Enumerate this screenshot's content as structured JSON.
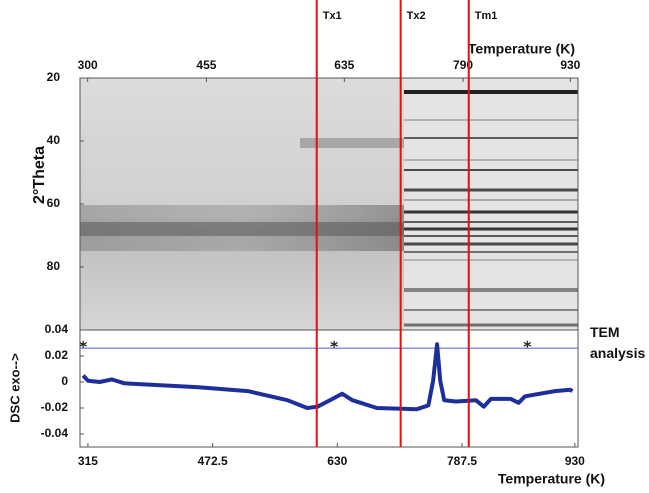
{
  "chart_data": [
    {
      "type": "image",
      "xlabel": "Temperature (K)",
      "ylabel": "2°Theta",
      "xlim": [
        290,
        940
      ],
      "xticks": [
        300,
        455,
        635,
        790,
        930
      ],
      "ylim": [
        20,
        100
      ],
      "yticks": [
        20,
        40,
        60,
        80
      ]
    },
    {
      "type": "line",
      "xlabel": "Temperature (K)",
      "ylabel": "DSC exo-->",
      "annotation": "TEM analysis",
      "xlim": [
        305,
        934
      ],
      "xticks": [
        315,
        472.5,
        630,
        787.5,
        930
      ],
      "ylim": [
        -0.05,
        0.04
      ],
      "yticks": [
        0.04,
        0.02,
        0,
        -0.02,
        -0.04
      ],
      "x": [
        309,
        315,
        330,
        345,
        361,
        392,
        455,
        517,
        567,
        592,
        605,
        624,
        636,
        649,
        680,
        730,
        745,
        751,
        756,
        760,
        765,
        780,
        805,
        815,
        824,
        849,
        859,
        867,
        905,
        924,
        927
      ],
      "series": [
        {
          "color": "#1f2f9a",
          "values": [
            0.005,
            0.001,
            0,
            0.002,
            -0.001,
            -0.002,
            -0.004,
            -0.007,
            -0.014,
            -0.02,
            -0.019,
            -0.013,
            -0.009,
            -0.014,
            -0.02,
            -0.021,
            -0.018,
            0.001,
            0.029,
            0.001,
            -0.014,
            -0.015,
            -0.014,
            -0.019,
            -0.013,
            -0.013,
            -0.016,
            -0.011,
            -0.007,
            -0.006,
            -0.007
          ]
        }
      ],
      "tem_level": 0.026,
      "tem_color": "#6b6bd6",
      "tem_points": [
        309,
        626,
        870
      ],
      "tem_point_level": 0.029,
      "marker_color": "#e01010",
      "markers": [
        {
          "x": 604,
          "label": "Tx1"
        },
        {
          "x": 710,
          "label": "Tx2"
        },
        {
          "x": 796,
          "label": "Tm1"
        }
      ]
    }
  ]
}
